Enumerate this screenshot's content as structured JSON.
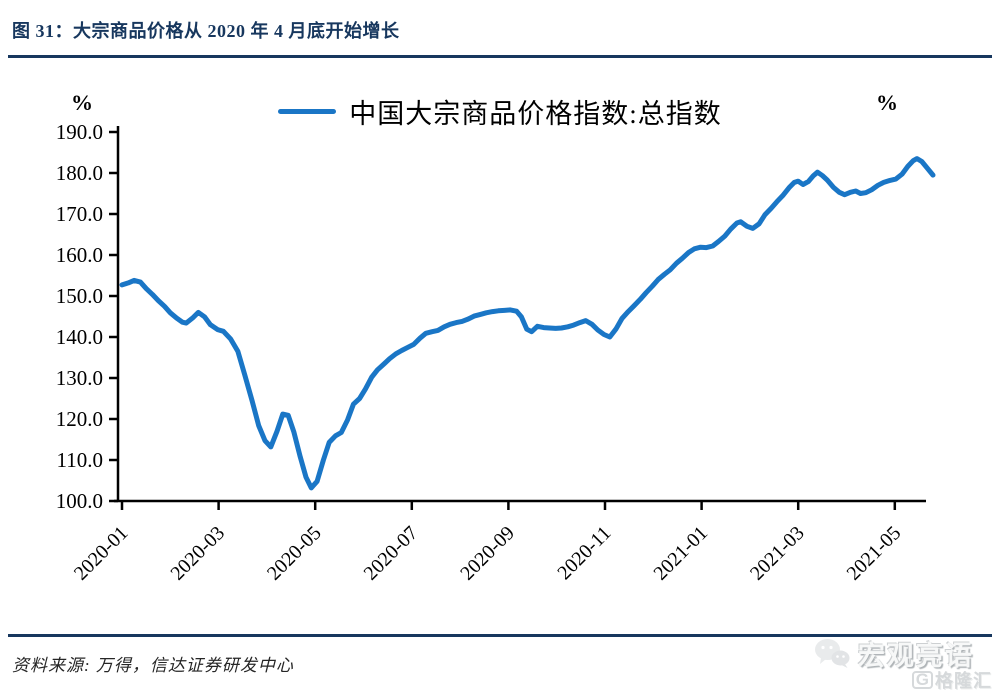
{
  "figure": {
    "title": "图 31：大宗商品价格从 2020 年 4 月底开始增长",
    "source_note": "资料来源: 万得，信达证券研发中心"
  },
  "legend": {
    "label": "中国大宗商品价格指数:总指数"
  },
  "watermark": {
    "wechat_name": "宏观亮语",
    "platform_letter": "G",
    "platform_name": "格隆汇"
  },
  "colors": {
    "accent_navy": "#17375E",
    "line_blue": "#1A76C6",
    "axis_black": "#000000"
  },
  "chart_data": {
    "type": "line",
    "title": "中国大宗商品价格指数:总指数",
    "unit_left": "%",
    "unit_right": "%",
    "ylim": [
      100,
      190
    ],
    "yticks": [
      100,
      110,
      120,
      130,
      140,
      150,
      160,
      170,
      180,
      190
    ],
    "ytick_labels": [
      "100.0",
      "110.0",
      "120.0",
      "130.0",
      "140.0",
      "150.0",
      "160.0",
      "170.0",
      "180.0",
      "190.0"
    ],
    "categories": [
      "2020-01",
      "2020-03",
      "2020-05",
      "2020-07",
      "2020-09",
      "2020-11",
      "2021-01",
      "2021-03",
      "2021-05"
    ],
    "xtick_months": [
      0,
      2,
      4,
      6,
      8,
      10,
      12,
      14,
      16
    ],
    "x_unit": "months since 2020-01 (weekly series)",
    "grid": false,
    "legend_position": "top-center",
    "series": [
      {
        "name": "中国大宗商品价格指数:总指数",
        "color": "#1A76C6",
        "points": [
          [
            0.0,
            152.7
          ],
          [
            0.13,
            153.2
          ],
          [
            0.25,
            153.8
          ],
          [
            0.38,
            153.4
          ],
          [
            0.5,
            151.8
          ],
          [
            0.63,
            150.4
          ],
          [
            0.75,
            148.9
          ],
          [
            0.88,
            147.5
          ],
          [
            1.0,
            145.9
          ],
          [
            1.13,
            144.6
          ],
          [
            1.25,
            143.6
          ],
          [
            1.33,
            143.4
          ],
          [
            1.46,
            144.6
          ],
          [
            1.58,
            146.0
          ],
          [
            1.71,
            144.9
          ],
          [
            1.83,
            143.0
          ],
          [
            1.98,
            141.8
          ],
          [
            2.1,
            141.4
          ],
          [
            2.25,
            139.5
          ],
          [
            2.4,
            136.5
          ],
          [
            2.54,
            130.8
          ],
          [
            2.69,
            124.6
          ],
          [
            2.83,
            118.4
          ],
          [
            2.96,
            114.7
          ],
          [
            3.08,
            113.2
          ],
          [
            3.21,
            117.0
          ],
          [
            3.33,
            121.2
          ],
          [
            3.44,
            120.9
          ],
          [
            3.56,
            116.8
          ],
          [
            3.69,
            110.8
          ],
          [
            3.81,
            105.8
          ],
          [
            3.92,
            103.2
          ],
          [
            4.04,
            104.8
          ],
          [
            4.17,
            110.0
          ],
          [
            4.29,
            114.3
          ],
          [
            4.42,
            115.9
          ],
          [
            4.54,
            116.7
          ],
          [
            4.67,
            119.8
          ],
          [
            4.79,
            123.6
          ],
          [
            4.92,
            125.0
          ],
          [
            5.04,
            127.3
          ],
          [
            5.17,
            130.2
          ],
          [
            5.29,
            132.0
          ],
          [
            5.42,
            133.4
          ],
          [
            5.54,
            134.7
          ],
          [
            5.67,
            135.9
          ],
          [
            5.79,
            136.7
          ],
          [
            5.92,
            137.5
          ],
          [
            6.04,
            138.2
          ],
          [
            6.17,
            139.7
          ],
          [
            6.29,
            140.9
          ],
          [
            6.42,
            141.3
          ],
          [
            6.54,
            141.6
          ],
          [
            6.67,
            142.5
          ],
          [
            6.79,
            143.1
          ],
          [
            6.92,
            143.5
          ],
          [
            7.04,
            143.8
          ],
          [
            7.17,
            144.4
          ],
          [
            7.29,
            145.1
          ],
          [
            7.42,
            145.5
          ],
          [
            7.54,
            145.9
          ],
          [
            7.67,
            146.2
          ],
          [
            7.79,
            146.4
          ],
          [
            7.92,
            146.5
          ],
          [
            8.04,
            146.6
          ],
          [
            8.17,
            146.3
          ],
          [
            8.27,
            144.9
          ],
          [
            8.38,
            141.9
          ],
          [
            8.48,
            141.3
          ],
          [
            8.6,
            142.6
          ],
          [
            8.73,
            142.3
          ],
          [
            8.85,
            142.2
          ],
          [
            8.98,
            142.1
          ],
          [
            9.1,
            142.2
          ],
          [
            9.23,
            142.5
          ],
          [
            9.35,
            142.9
          ],
          [
            9.48,
            143.5
          ],
          [
            9.6,
            144.0
          ],
          [
            9.73,
            143.1
          ],
          [
            9.85,
            141.7
          ],
          [
            9.98,
            140.6
          ],
          [
            10.1,
            140.0
          ],
          [
            10.23,
            142.0
          ],
          [
            10.35,
            144.5
          ],
          [
            10.48,
            146.2
          ],
          [
            10.6,
            147.6
          ],
          [
            10.73,
            149.2
          ],
          [
            10.85,
            150.8
          ],
          [
            10.98,
            152.4
          ],
          [
            11.1,
            154.0
          ],
          [
            11.23,
            155.3
          ],
          [
            11.35,
            156.4
          ],
          [
            11.48,
            158.0
          ],
          [
            11.6,
            159.2
          ],
          [
            11.73,
            160.6
          ],
          [
            11.85,
            161.5
          ],
          [
            11.98,
            161.9
          ],
          [
            12.1,
            161.8
          ],
          [
            12.23,
            162.2
          ],
          [
            12.35,
            163.3
          ],
          [
            12.48,
            164.6
          ],
          [
            12.6,
            166.3
          ],
          [
            12.73,
            167.8
          ],
          [
            12.81,
            168.1
          ],
          [
            12.94,
            167.0
          ],
          [
            13.06,
            166.5
          ],
          [
            13.19,
            167.6
          ],
          [
            13.31,
            169.8
          ],
          [
            13.44,
            171.4
          ],
          [
            13.56,
            173.0
          ],
          [
            13.69,
            174.6
          ],
          [
            13.81,
            176.4
          ],
          [
            13.92,
            177.7
          ],
          [
            14.0,
            178.0
          ],
          [
            14.1,
            177.2
          ],
          [
            14.21,
            177.9
          ],
          [
            14.31,
            179.3
          ],
          [
            14.4,
            180.2
          ],
          [
            14.5,
            179.4
          ],
          [
            14.6,
            178.3
          ],
          [
            14.73,
            176.5
          ],
          [
            14.85,
            175.3
          ],
          [
            14.96,
            174.7
          ],
          [
            15.08,
            175.3
          ],
          [
            15.19,
            175.6
          ],
          [
            15.29,
            175.0
          ],
          [
            15.4,
            175.2
          ],
          [
            15.52,
            175.9
          ],
          [
            15.65,
            177.0
          ],
          [
            15.77,
            177.7
          ],
          [
            15.9,
            178.2
          ],
          [
            16.02,
            178.5
          ],
          [
            16.15,
            179.7
          ],
          [
            16.27,
            181.6
          ],
          [
            16.38,
            183.0
          ],
          [
            16.46,
            183.5
          ],
          [
            16.56,
            182.8
          ],
          [
            16.67,
            181.2
          ],
          [
            16.79,
            179.5
          ]
        ]
      }
    ]
  }
}
